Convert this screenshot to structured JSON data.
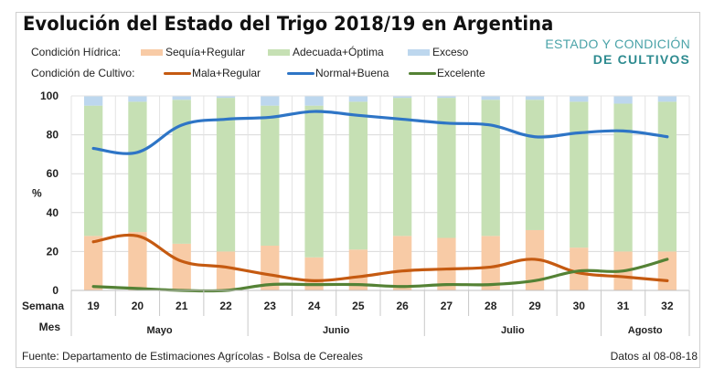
{
  "header": {
    "title": "Evolución del Estado del Trigo 2018/19 en Argentina",
    "logo_line1": "ESTADO Y CONDICIÓN",
    "logo_line2": "DE CULTIVOS"
  },
  "legend": {
    "hydric_label": "Condición Hídrica:",
    "crop_label": "Condición de Cultivo:",
    "items": [
      {
        "label": "Sequía+Regular",
        "color": "#f8cba6",
        "kind": "bar"
      },
      {
        "label": "Adecuada+Óptima",
        "color": "#c6e0b4",
        "kind": "bar"
      },
      {
        "label": "Exceso",
        "color": "#bdd7ee",
        "kind": "bar"
      },
      {
        "label": "Mala+Regular",
        "color": "#c55a11",
        "kind": "line"
      },
      {
        "label": "Normal+Buena",
        "color": "#2e75c6",
        "kind": "line"
      },
      {
        "label": "Excelente",
        "color": "#548235",
        "kind": "line"
      }
    ]
  },
  "footer": {
    "source": "Fuente: Departamento de Estimaciones Agrícolas - Bolsa de Cereales",
    "date": "Datos al 08-08-18"
  },
  "chart_data": {
    "type": "bar",
    "title": "Evolución del Estado del Trigo 2018/19 en Argentina",
    "xlabel": "Semana / Mes",
    "ylabel": "%",
    "ylim": [
      0,
      100
    ],
    "yticks": [
      0,
      20,
      40,
      60,
      80,
      100
    ],
    "grid": true,
    "row_labels": {
      "week": "Semana",
      "month": "Mes"
    },
    "categories": [
      "19",
      "20",
      "21",
      "22",
      "23",
      "24",
      "25",
      "26",
      "27",
      "28",
      "29",
      "30",
      "31",
      "32"
    ],
    "months": [
      {
        "label": "Mayo",
        "span": 4
      },
      {
        "label": "Junio",
        "span": 4
      },
      {
        "label": "Julio",
        "span": 4
      },
      {
        "label": "Agosto",
        "span": 2
      }
    ],
    "stacked_bars": [
      {
        "name": "Sequía+Regular",
        "color": "#f8cba6",
        "values": [
          28,
          30,
          24,
          20,
          23,
          17,
          21,
          28,
          27,
          28,
          31,
          22,
          20,
          20
        ]
      },
      {
        "name": "Adecuada+Óptima",
        "color": "#c6e0b4",
        "values": [
          67,
          67,
          74,
          79,
          72,
          78,
          76,
          71,
          72,
          70,
          67,
          75,
          76,
          77
        ]
      },
      {
        "name": "Exceso",
        "color": "#bdd7ee",
        "values": [
          5,
          3,
          2,
          1,
          5,
          5,
          3,
          1,
          1,
          2,
          2,
          3,
          4,
          3
        ]
      }
    ],
    "lines": [
      {
        "name": "Mala+Regular",
        "color": "#c55a11",
        "values": [
          25,
          28,
          15,
          12,
          8,
          5,
          7,
          10,
          11,
          12,
          16,
          9,
          7,
          5
        ]
      },
      {
        "name": "Normal+Buena",
        "color": "#2e75c6",
        "values": [
          73,
          71,
          85,
          88,
          89,
          92,
          90,
          88,
          86,
          85,
          79,
          81,
          82,
          79
        ]
      },
      {
        "name": "Excelente",
        "color": "#548235",
        "values": [
          2,
          1,
          0,
          0,
          3,
          3,
          3,
          2,
          3,
          3,
          5,
          10,
          10,
          16
        ]
      }
    ]
  }
}
